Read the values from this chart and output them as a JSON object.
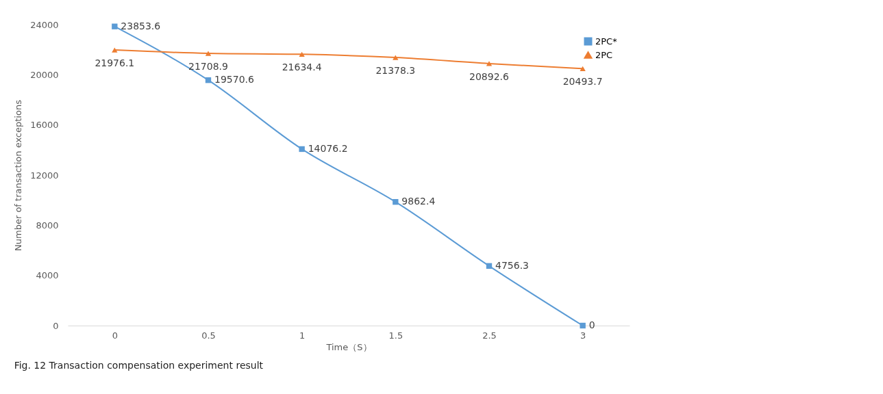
{
  "chart_data": {
    "type": "line",
    "xlabel": "Time（S）",
    "ylabel": "Number of transaction  exceptions",
    "annotations": [
      "Fig. 12 Transaction compensation experiment result"
    ],
    "categories": [
      "0",
      "0.5",
      "1",
      "1.5",
      "2.5",
      "3"
    ],
    "ylim": [
      0,
      24000
    ],
    "yticks": [
      0,
      4000,
      8000,
      12000,
      16000,
      20000,
      24000
    ],
    "legend": "top right",
    "data_labels": true,
    "series": [
      {
        "name": "2PC*",
        "color": "#5b9bd5",
        "marker": "square",
        "values": [
          23853.6,
          19570.6,
          14076.2,
          9862.4,
          4756.3,
          0
        ]
      },
      {
        "name": "2PC",
        "color": "#ed7d31",
        "marker": "triangle",
        "values": [
          21976.1,
          21708.9,
          21634.4,
          21378.3,
          20892.6,
          20493.7
        ]
      }
    ]
  }
}
